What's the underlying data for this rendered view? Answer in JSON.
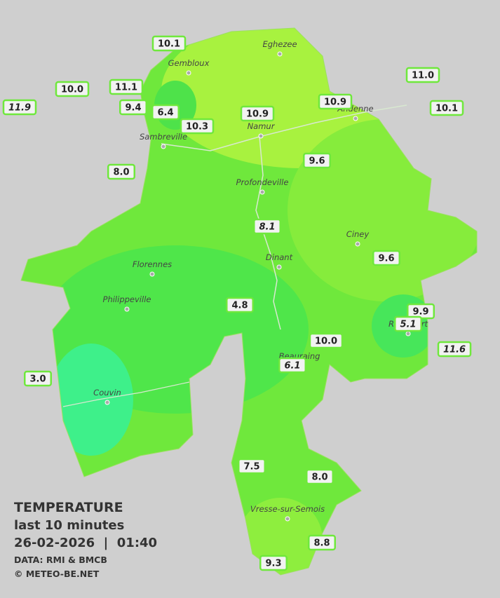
{
  "title": "TEMPERATURE",
  "subtitle": "last 10 minutes",
  "datetime": "26-02-2026  |  01:40",
  "source": "DATA: RMI & BMCB",
  "credit": "© METEO-BE.NET",
  "cities": [
    "Eghezee",
    "Gembloux",
    "Andenne",
    "Namur",
    "Sambreville",
    "Profondeville",
    "Ciney",
    "Dinant",
    "Florennes",
    "Philippeville",
    "Beauraing",
    "Rochefort",
    "Couvin",
    "Vresse-sur-Semois"
  ],
  "stations": [
    {
      "label": "10.1",
      "italic": false
    },
    {
      "label": "11.0",
      "italic": false
    },
    {
      "label": "10.0",
      "italic": false
    },
    {
      "label": "11.1",
      "italic": false
    },
    {
      "label": "11.9",
      "italic": true
    },
    {
      "label": "9.4",
      "italic": false
    },
    {
      "label": "6.4",
      "italic": false
    },
    {
      "label": "10.9",
      "italic": false
    },
    {
      "label": "10.9",
      "italic": false
    },
    {
      "label": "10.1",
      "italic": false
    },
    {
      "label": "10.3",
      "italic": false
    },
    {
      "label": "9.6",
      "italic": false
    },
    {
      "label": "8.0",
      "italic": false
    },
    {
      "label": "8.1",
      "italic": true
    },
    {
      "label": "9.6",
      "italic": false
    },
    {
      "label": "4.8",
      "italic": false
    },
    {
      "label": "9.9",
      "italic": false
    },
    {
      "label": "5.1",
      "italic": true
    },
    {
      "label": "10.0",
      "italic": false
    },
    {
      "label": "11.6",
      "italic": true
    },
    {
      "label": "6.1",
      "italic": true
    },
    {
      "label": "3.0",
      "italic": false
    },
    {
      "label": "7.5",
      "italic": false
    },
    {
      "label": "8.0",
      "italic": false
    },
    {
      "label": "8.8",
      "italic": false
    },
    {
      "label": "9.3",
      "italic": false
    }
  ]
}
